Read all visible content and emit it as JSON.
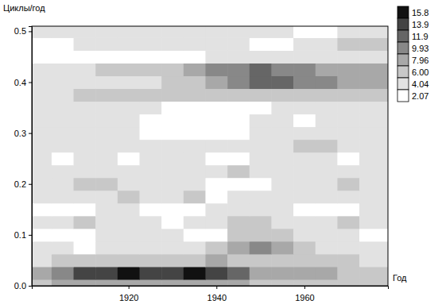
{
  "chart_data": {
    "type": "heatmap",
    "x_label": "Год",
    "y_label": "Циклы/год",
    "xlim": [
      1898,
      1979
    ],
    "ylim": [
      0,
      0.51
    ],
    "xticks": [
      1920,
      1940,
      1960
    ],
    "yticks": [
      {
        "value": 0,
        "label": "0.0"
      },
      {
        "value": 0.1,
        "label": "0.1"
      },
      {
        "value": 0.2,
        "label": "0.2"
      },
      {
        "value": 0.3,
        "label": "0.3"
      },
      {
        "value": 0.4,
        "label": "0.4"
      },
      {
        "value": 0.5,
        "label": "0.5"
      }
    ],
    "x": [
      1900,
      1905,
      1910,
      1915,
      1920,
      1925,
      1930,
      1935,
      1940,
      1945,
      1950,
      1955,
      1960,
      1965,
      1970,
      1975
    ],
    "y": [
      0,
      0.025,
      0.05,
      0.075,
      0.1,
      0.125,
      0.15,
      0.175,
      0.2,
      0.225,
      0.25,
      0.275,
      0.3,
      0.325,
      0.35,
      0.375,
      0.4,
      0.425,
      0.45,
      0.475,
      0.5
    ],
    "values": [
      [
        6,
        8,
        9,
        9,
        9,
        9,
        9,
        9,
        9,
        8,
        7,
        6,
        7,
        7,
        6,
        6
      ],
      [
        8,
        11,
        14,
        15,
        16,
        15,
        15,
        16,
        15,
        12,
        9,
        8,
        9,
        8,
        7,
        7
      ],
      [
        5,
        6,
        7,
        7,
        7,
        7,
        6,
        7,
        8,
        7,
        6,
        6,
        6,
        7,
        6,
        5
      ],
      [
        5,
        5,
        4,
        5,
        5,
        5,
        5,
        5,
        6,
        8,
        10,
        8,
        6,
        5,
        5,
        5
      ],
      [
        4,
        3,
        4,
        5,
        5,
        5,
        5,
        4,
        4,
        6,
        7,
        6,
        5,
        5,
        5,
        4
      ],
      [
        5,
        5,
        6,
        5,
        5,
        5,
        4,
        5,
        5,
        6,
        6,
        5,
        5,
        5,
        6,
        5
      ],
      [
        3,
        3,
        4,
        5,
        5,
        3,
        3,
        4,
        5,
        5,
        5,
        5,
        4,
        3,
        4,
        5
      ],
      [
        5,
        5,
        5,
        5,
        6,
        5,
        5,
        6,
        4,
        5,
        5,
        5,
        5,
        5,
        5,
        5
      ],
      [
        5,
        5,
        6,
        6,
        5,
        5,
        5,
        5,
        3,
        3,
        3,
        5,
        5,
        5,
        6,
        5
      ],
      [
        5,
        5,
        5,
        5,
        5,
        5,
        5,
        5,
        5,
        6,
        5,
        5,
        5,
        5,
        5,
        5
      ],
      [
        5,
        4,
        5,
        5,
        4,
        5,
        5,
        5,
        3,
        4,
        5,
        5,
        5,
        5,
        4,
        5
      ],
      [
        5,
        5,
        5,
        5,
        5,
        5,
        5,
        5,
        5,
        5,
        5,
        5,
        6,
        6,
        5,
        5
      ],
      [
        5,
        5,
        5,
        5,
        5,
        4,
        3,
        3,
        3,
        4,
        5,
        5,
        5,
        5,
        5,
        5
      ],
      [
        5,
        5,
        5,
        5,
        5,
        4,
        3,
        4,
        3,
        4,
        5,
        5,
        4,
        5,
        5,
        5
      ],
      [
        5,
        5,
        5,
        5,
        5,
        5,
        4,
        3,
        4,
        3,
        4,
        5,
        5,
        5,
        5,
        5
      ],
      [
        5,
        5,
        6,
        6,
        6,
        6,
        6,
        6,
        7,
        6,
        6,
        6,
        6,
        6,
        6,
        6
      ],
      [
        5,
        5,
        5,
        5,
        5,
        5,
        6,
        7,
        9,
        11,
        12,
        12,
        11,
        10,
        9,
        9
      ],
      [
        5,
        5,
        5,
        6,
        6,
        6,
        7,
        8,
        10,
        11,
        12,
        11,
        10,
        9,
        8,
        9
      ],
      [
        3,
        3,
        3,
        3,
        3,
        3,
        4,
        4,
        5,
        5,
        5,
        5,
        5,
        5,
        5,
        5
      ],
      [
        4,
        4,
        5,
        5,
        5,
        5,
        5,
        5,
        5,
        5,
        4,
        4,
        5,
        5,
        6,
        6
      ],
      [
        5,
        5,
        5,
        5,
        5,
        5,
        5,
        5,
        5,
        5,
        5,
        5,
        4,
        4,
        5,
        5
      ]
    ],
    "colorbar": {
      "levels": [
        2.07,
        4.04,
        {
          "value": 6,
          "label": "6.00"
        },
        7.96,
        9.93,
        11.9,
        13.9,
        15.8
      ],
      "colors": [
        "#ffffff",
        "#e2e2e2",
        "#c8c8c8",
        "#a8a8a8",
        "#888888",
        "#666666",
        "#444444",
        "#111111"
      ]
    }
  }
}
